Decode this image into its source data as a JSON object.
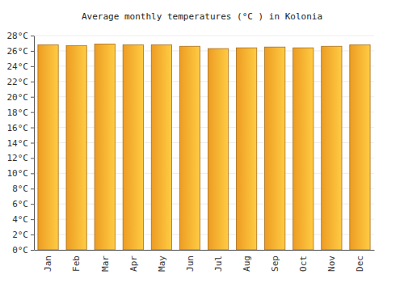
{
  "chart_data": {
    "type": "bar",
    "title": "Average monthly temperatures (°C ) in Kolonia",
    "categories": [
      "Jan",
      "Feb",
      "Mar",
      "Apr",
      "May",
      "Jun",
      "Jul",
      "Aug",
      "Sep",
      "Oct",
      "Nov",
      "Dec"
    ],
    "values": [
      26.8,
      26.7,
      26.9,
      26.8,
      26.8,
      26.6,
      26.3,
      26.4,
      26.5,
      26.4,
      26.6,
      26.8
    ],
    "color": "#ffa726",
    "ylim": [
      0,
      28
    ],
    "yticks": [
      {
        "value": 0,
        "label": "0°C"
      },
      {
        "value": 2,
        "label": "2°C"
      },
      {
        "value": 4,
        "label": "4°C"
      },
      {
        "value": 6,
        "label": "6°C"
      },
      {
        "value": 8,
        "label": "8°C"
      },
      {
        "value": 10,
        "label": "10°C"
      },
      {
        "value": 12,
        "label": "12°C"
      },
      {
        "value": 14,
        "label": "14°C"
      },
      {
        "value": 16,
        "label": "16°C"
      },
      {
        "value": 18,
        "label": "18°C"
      },
      {
        "value": 20,
        "label": "20°C"
      },
      {
        "value": 22,
        "label": "22°C"
      },
      {
        "value": 24,
        "label": "24°C"
      },
      {
        "value": 26,
        "label": "26°C"
      },
      {
        "value": 28,
        "label": "28°C"
      }
    ],
    "grid": true
  }
}
